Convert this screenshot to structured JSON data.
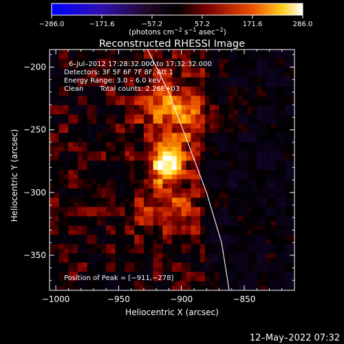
{
  "chart_data": {
    "type": "heatmap",
    "title": "Reconstructed RHESSI Image",
    "xlabel": "Heliocentric X (arcsec)",
    "ylabel": "Heliocentric Y (arcsec)",
    "xlim": [
      -1005,
      -810
    ],
    "ylim": [
      -378,
      -186
    ],
    "x_ticks": [
      -1000,
      -950,
      -900,
      -850
    ],
    "y_ticks": [
      -200,
      -250,
      -300,
      -350
    ],
    "x_tick_labels": [
      "−1000",
      "−950",
      "−900",
      "−850"
    ],
    "y_tick_labels": [
      "−200",
      "−250",
      "−300",
      "−350"
    ],
    "colorbar": {
      "range": [
        -286.0,
        286.0
      ],
      "tick_labels": [
        "−286.0",
        "−171.6",
        "−57.2",
        "57.2",
        "171.6",
        "286.0"
      ],
      "units_label": "(photons cm",
      "units_sup1": "−2",
      "units_mid": " s",
      "units_sup2": "−1",
      "units_mid2": " asec",
      "units_sup3": "−2",
      "units_end": ")"
    },
    "annotations": {
      "time_range": "6–Jul–2012 17:28:32.000 to 17:32:32.000",
      "detectors": "Detectors: 3F 5F 6F 7F 8F, Att 1",
      "energy": "Energy Range: 3.0 – 6.0 keV",
      "method": "Clean",
      "counts": "Total counts: 2.26E+03",
      "peak": "Position of Peak = [−911,−278]"
    },
    "peak": {
      "x": -911,
      "y": -278,
      "value": 286.0
    },
    "secondary_sources": [
      {
        "x": -905,
        "y": -235,
        "value": 150
      },
      {
        "x": -912,
        "y": -310,
        "value": 90
      }
    ],
    "limb": [
      [
        -927,
        -186
      ],
      [
        -910,
        -220
      ],
      [
        -895,
        -260
      ],
      [
        -880,
        -300
      ],
      [
        -868,
        -340
      ],
      [
        -862,
        -378
      ]
    ]
  },
  "footer": {
    "date": "12–May–2022 07:32"
  },
  "colors": {
    "limb": "#ffffff",
    "axis": "#ffffff",
    "background": "#000000"
  }
}
